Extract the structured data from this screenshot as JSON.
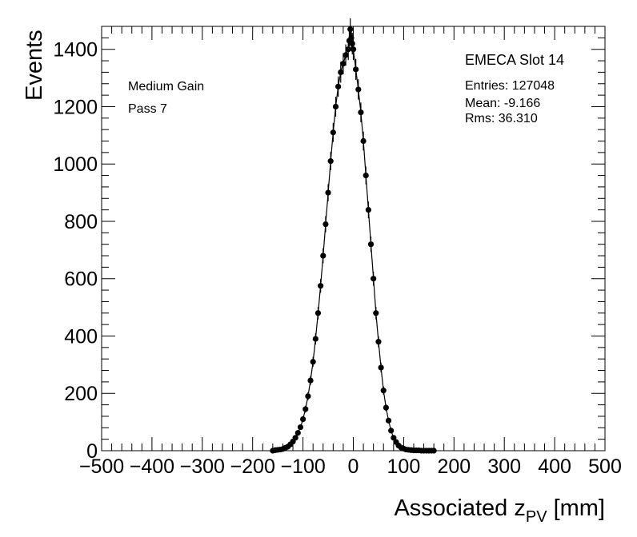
{
  "chart_data": {
    "type": "scatter",
    "xlabel": "Associated z",
    "xlabel_sub": "PV",
    "xlabel_unit": "[mm]",
    "ylabel": "Events",
    "xlim": [
      -500,
      500
    ],
    "ylim": [
      0,
      1480
    ],
    "x_ticks": [
      -500,
      -400,
      -300,
      -200,
      -100,
      0,
      100,
      200,
      300,
      400,
      500
    ],
    "y_ticks": [
      0,
      200,
      400,
      600,
      800,
      1000,
      1200,
      1400
    ],
    "x_tick_labels": [
      "−500",
      "−400",
      "−300",
      "−200",
      "−100",
      "0",
      "100",
      "200",
      "300",
      "400",
      "500"
    ],
    "y_tick_labels": [
      "0",
      "200",
      "400",
      "600",
      "800",
      "1000",
      "1200",
      "1400"
    ],
    "grid": false,
    "legend": "none",
    "series": [
      {
        "x": [
          -160,
          -155,
          -150,
          -145,
          -140,
          -135,
          -130,
          -125,
          -120,
          -115,
          -110,
          -105,
          -100,
          -95,
          -90,
          -85,
          -80,
          -75,
          -70,
          -65,
          -60,
          -55,
          -50,
          -45,
          -40,
          -35,
          -30,
          -25,
          -20,
          -15,
          -10,
          -8,
          -6,
          -4,
          -2,
          0,
          5,
          10,
          15,
          20,
          25,
          30,
          35,
          40,
          45,
          50,
          55,
          60,
          65,
          70,
          75,
          80,
          85,
          90,
          95,
          100,
          105,
          110,
          115,
          120,
          125,
          130,
          135,
          140,
          145,
          150,
          155,
          160
        ],
        "y": [
          0,
          2,
          3,
          4,
          6,
          10,
          14,
          22,
          32,
          45,
          62,
          82,
          110,
          145,
          190,
          245,
          310,
          390,
          480,
          575,
          680,
          790,
          900,
          1010,
          1110,
          1200,
          1270,
          1320,
          1350,
          1380,
          1400,
          1430,
          1470,
          1440,
          1420,
          1400,
          1330,
          1260,
          1180,
          1080,
          960,
          840,
          720,
          600,
          480,
          380,
          290,
          210,
          150,
          105,
          70,
          45,
          30,
          18,
          11,
          7,
          4,
          3,
          2,
          1,
          1,
          1,
          0,
          0,
          0,
          0,
          0,
          0
        ],
        "color": "#000000"
      }
    ],
    "annotations": {
      "gain": "Medium Gain",
      "pass": "Pass 7",
      "slot": "EMECA Slot 14",
      "entries": "Entries: 127048",
      "mean": "Mean: -9.166",
      "rms": "Rms: 36.310"
    }
  }
}
